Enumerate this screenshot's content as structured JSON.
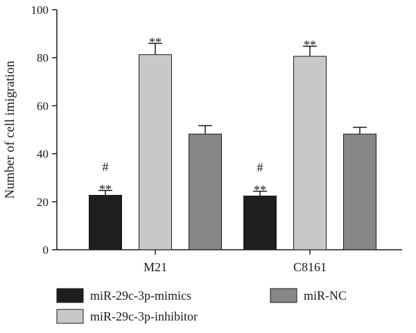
{
  "chart_data": {
    "type": "bar",
    "categories": [
      "M21",
      "C8161"
    ],
    "ylabel": "Number of cell imigration",
    "ylim": [
      0,
      100
    ],
    "yticks": [
      0,
      20,
      40,
      60,
      80,
      100
    ],
    "series": [
      {
        "name": "miR-29c-3p-mimics",
        "color": "#1e1e1e",
        "values": [
          22.7,
          22.4
        ],
        "errors": [
          2.0,
          2.0
        ],
        "annotations": [
          "**\n#",
          "**\n#"
        ]
      },
      {
        "name": "miR-29c-3p-inhibitor",
        "color": "#c8c8c8",
        "values": [
          81.3,
          80.6
        ],
        "errors": [
          4.7,
          4.2
        ],
        "annotations": [
          "**",
          "**"
        ]
      },
      {
        "name": "miR-NC",
        "color": "#878787",
        "values": [
          48.2,
          48.2
        ],
        "errors": [
          3.5,
          2.8
        ],
        "annotations": [
          "",
          ""
        ]
      }
    ],
    "legend_position": "bottom",
    "grid": false
  }
}
